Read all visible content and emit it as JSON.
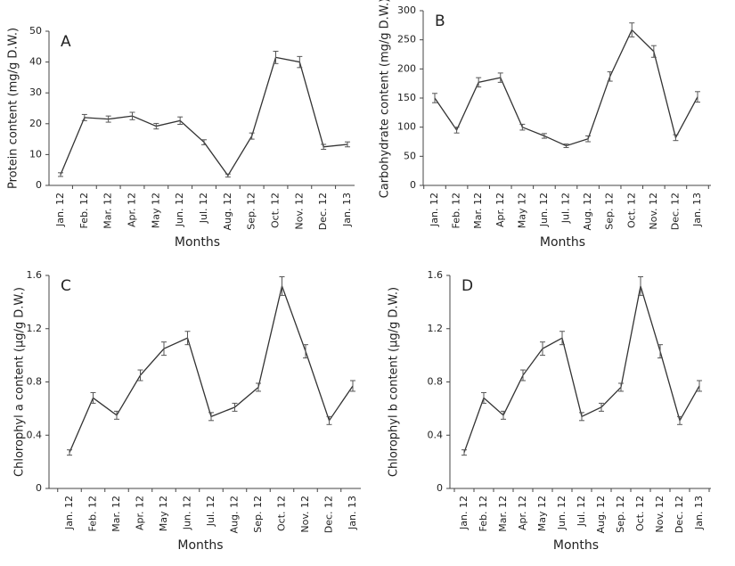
{
  "chart_data": [
    {
      "type": "line",
      "label": "A",
      "xlabel": "Months",
      "ylabel": "Protein content (mg/g D.W.)",
      "color": "#333333",
      "categories": [
        "Jan. 12",
        "Feb. 12",
        "Mar. 12",
        "Apr. 12",
        "May 12",
        "Jun. 12",
        "Jul. 12",
        "Aug. 12",
        "Sep. 12",
        "Oct. 12",
        "Nov. 12",
        "Dec. 12",
        "Jan. 13"
      ],
      "values": [
        3.5,
        22,
        21.5,
        22.5,
        19.2,
        21,
        14,
        3.2,
        16,
        41.5,
        40,
        12.5,
        13.3
      ],
      "errors": [
        0.6,
        1,
        1,
        1.2,
        0.9,
        1.2,
        0.8,
        0.5,
        1,
        2,
        1.8,
        0.8,
        0.8
      ],
      "ylim": [
        0,
        50
      ],
      "yticks": [
        0,
        10,
        20,
        30,
        40,
        50
      ]
    },
    {
      "type": "line",
      "label": "B",
      "xlabel": "Months",
      "ylabel": "Carbohydrate content (mg/g D.W.)",
      "color": "#333333",
      "categories": [
        "Jan. 12",
        "Feb. 12",
        "Mar. 12",
        "Apr. 12",
        "May 12",
        "Jun. 12",
        "Jul. 12",
        "Aug. 12",
        "Sep. 12",
        "Oct. 12",
        "Nov. 12",
        "Dec. 12",
        "Jan. 13"
      ],
      "values": [
        150,
        95,
        177,
        185,
        100,
        85,
        68,
        80,
        187,
        267,
        230,
        82,
        152
      ],
      "errors": [
        8,
        5,
        8,
        8,
        5,
        4,
        3,
        5,
        8,
        12,
        10,
        5,
        9
      ],
      "ylim": [
        0,
        300
      ],
      "yticks": [
        0,
        50,
        100,
        150,
        200,
        250,
        300
      ]
    },
    {
      "type": "line",
      "label": "C",
      "xlabel": "Months",
      "ylabel": "Chlorophyl a content (µg/g D.W.)",
      "color": "#333333",
      "categories": [
        "Jan. 12",
        "Feb. 12",
        "Mar. 12",
        "Apr. 12",
        "May 12",
        "Jun. 12",
        "Jul. 12",
        "Aug. 12",
        "Sep. 12",
        "Oct. 12",
        "Nov. 12",
        "Dec. 12",
        "Jan. 13"
      ],
      "values": [
        0.27,
        0.68,
        0.55,
        0.85,
        1.05,
        1.13,
        0.54,
        0.61,
        0.76,
        1.52,
        1.03,
        0.51,
        0.77
      ],
      "errors": [
        0.02,
        0.04,
        0.03,
        0.04,
        0.05,
        0.05,
        0.03,
        0.03,
        0.03,
        0.07,
        0.05,
        0.03,
        0.04
      ],
      "ylim": [
        0,
        1.6
      ],
      "yticks": [
        0,
        0.4,
        0.8,
        1.2,
        1.6
      ]
    },
    {
      "type": "line",
      "label": "D",
      "xlabel": "Months",
      "ylabel": "Chlorophyl b content (µg/g D.W.)",
      "color": "#333333",
      "categories": [
        "Jan. 12",
        "Feb. 12",
        "Mar. 12",
        "Apr. 12",
        "May 12",
        "Jun. 12",
        "Jul. 12",
        "Aug. 12",
        "Sep. 12",
        "Oct. 12",
        "Nov. 12",
        "Dec. 12",
        "Jan. 13"
      ],
      "values": [
        0.27,
        0.68,
        0.55,
        0.85,
        1.05,
        1.13,
        0.54,
        0.61,
        0.76,
        1.52,
        1.03,
        0.51,
        0.77
      ],
      "errors": [
        0.02,
        0.04,
        0.03,
        0.04,
        0.05,
        0.05,
        0.03,
        0.03,
        0.03,
        0.07,
        0.05,
        0.03,
        0.04
      ],
      "ylim": [
        0,
        1.6
      ],
      "yticks": [
        0,
        0.4,
        0.8,
        1.2,
        1.6
      ]
    }
  ]
}
